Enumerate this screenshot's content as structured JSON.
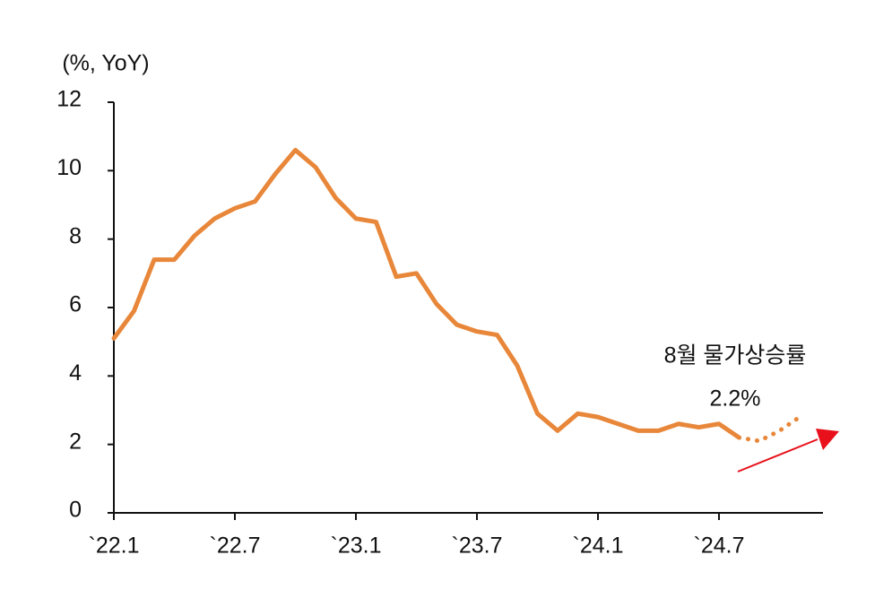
{
  "chart_data": {
    "type": "line",
    "y_label": "(%, YoY)",
    "categories": [
      "`22.1",
      null,
      null,
      null,
      null,
      null,
      "`22.7",
      null,
      null,
      null,
      null,
      null,
      "`23.1",
      null,
      null,
      null,
      null,
      null,
      "`23.7",
      null,
      null,
      null,
      null,
      null,
      "`24.1",
      null,
      null,
      null,
      null,
      null,
      "`24.7",
      null,
      null,
      null,
      null,
      null
    ],
    "series": [
      {
        "color": "#e8873a",
        "style": "solid",
        "values": [
          5.1,
          5.9,
          7.4,
          7.4,
          8.1,
          8.6,
          8.9,
          9.1,
          9.9,
          10.6,
          10.1,
          9.2,
          8.6,
          8.5,
          6.9,
          7.0,
          6.1,
          5.5,
          5.3,
          5.2,
          4.3,
          2.9,
          2.4,
          2.9,
          2.8,
          2.6,
          2.4,
          2.4,
          2.6,
          2.5,
          2.6,
          2.2,
          null,
          null,
          null,
          null
        ]
      },
      {
        "color": "#e8873a",
        "style": "dotted",
        "values": [
          null,
          null,
          null,
          null,
          null,
          null,
          null,
          null,
          null,
          null,
          null,
          null,
          null,
          null,
          null,
          null,
          null,
          null,
          null,
          null,
          null,
          null,
          null,
          null,
          null,
          null,
          null,
          null,
          null,
          null,
          null,
          2.2,
          2.1,
          2.4,
          2.8,
          null
        ]
      }
    ],
    "ylim": [
      0,
      12
    ],
    "yticks": [
      0,
      2,
      4,
      6,
      8,
      10,
      12
    ],
    "grid": false,
    "annotations": [
      "8월 물가상승률",
      "2.2%"
    ]
  }
}
